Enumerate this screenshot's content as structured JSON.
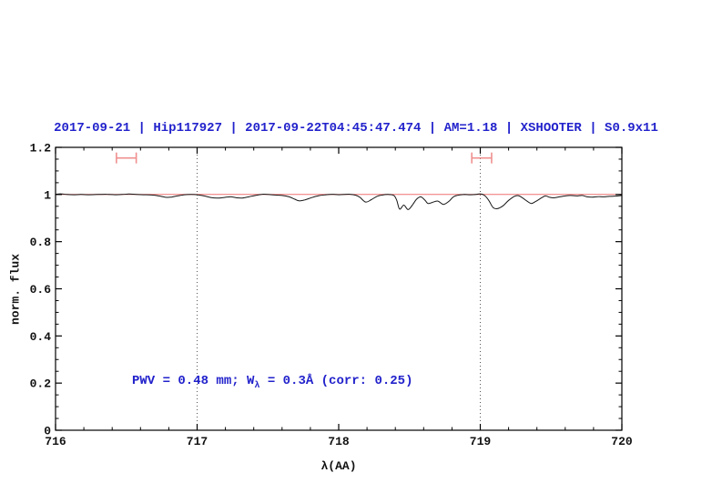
{
  "title": "2017-09-21 | Hip117927 | 2017-09-22T04:45:47.474 | AM=1.18 | XSHOOTER | S0.9x11",
  "annotation": {
    "prefix": "PWV = 0.48 mm; W",
    "sub": "λ",
    "suffix": " = 0.3Å (corr: 0.25)"
  },
  "colors": {
    "title_blue": "#2222cc",
    "spectrum_black": "#161616",
    "continuum_red": "#ee7070",
    "errorbar_salmon": "#f09090",
    "frame_black": "#000000",
    "vline_gray": "#555555"
  },
  "chart_data": {
    "type": "line",
    "title": "2017-09-21 | Hip117927 | 2017-09-22T04:45:47.474 | AM=1.18 | XSHOOTER | S0.9x11",
    "xlabel": "λ(AA)",
    "ylabel": "norm. flux",
    "xlim": [
      716,
      720
    ],
    "ylim": [
      0,
      1.2
    ],
    "grid": false,
    "legend": "none",
    "x_ticks": {
      "major": [
        716,
        717,
        718,
        719,
        720
      ],
      "labels": [
        "716",
        "717",
        "718",
        "719",
        "720"
      ],
      "minor_step": 0.2
    },
    "y_ticks": {
      "major": [
        0,
        0.2,
        0.4,
        0.6,
        0.8,
        1,
        1.2
      ],
      "labels": [
        "0",
        "0.2",
        "0.4",
        "0.6",
        "0.8",
        "1",
        "1.2"
      ],
      "minor_step": 0.05
    },
    "vlines": [
      717,
      719
    ],
    "annotations": [
      {
        "text": "PWV = 0.48 mm; W_λ = 0.3Å (corr: 0.25)",
        "x": 716.55,
        "y": 0.19
      }
    ],
    "error_bars": [
      {
        "x": 716.5,
        "xerr": 0.07,
        "y": 1.155
      },
      {
        "x": 719.01,
        "xerr": 0.07,
        "y": 1.155
      }
    ],
    "series": [
      {
        "name": "continuum-fit",
        "color": "#ee7070",
        "points": [
          [
            716,
            1.0
          ],
          [
            720,
            1.0
          ]
        ]
      },
      {
        "name": "observed-spectrum",
        "color": "#161616",
        "points": [
          [
            716.0,
            1.001
          ],
          [
            716.04,
            1.003
          ],
          [
            716.08,
            1.0
          ],
          [
            716.13,
            0.999
          ],
          [
            716.18,
            1.0
          ],
          [
            716.24,
            0.999
          ],
          [
            716.3,
            1.0
          ],
          [
            716.36,
            1.001
          ],
          [
            716.42,
            0.999
          ],
          [
            716.47,
            1.0
          ],
          [
            716.52,
            1.002
          ],
          [
            716.57,
            1.0
          ],
          [
            716.62,
            0.999
          ],
          [
            716.68,
            0.998
          ],
          [
            716.73,
            0.994
          ],
          [
            716.78,
            0.988
          ],
          [
            716.82,
            0.989
          ],
          [
            716.86,
            0.994
          ],
          [
            716.91,
            0.999
          ],
          [
            716.96,
            1.0
          ],
          [
            717.0,
            0.999
          ],
          [
            717.05,
            0.994
          ],
          [
            717.1,
            0.987
          ],
          [
            717.15,
            0.985
          ],
          [
            717.2,
            0.988
          ],
          [
            717.24,
            0.99
          ],
          [
            717.28,
            0.986
          ],
          [
            717.32,
            0.985
          ],
          [
            717.37,
            0.991
          ],
          [
            717.42,
            0.997
          ],
          [
            717.46,
            1.001
          ],
          [
            717.5,
            1.0
          ],
          [
            717.55,
            0.998
          ],
          [
            717.6,
            0.996
          ],
          [
            717.65,
            0.99
          ],
          [
            717.69,
            0.98
          ],
          [
            717.72,
            0.973
          ],
          [
            717.76,
            0.977
          ],
          [
            717.81,
            0.987
          ],
          [
            717.86,
            0.995
          ],
          [
            717.91,
            0.999
          ],
          [
            717.96,
            1.001
          ],
          [
            718.0,
            0.999
          ],
          [
            718.04,
            1.0
          ],
          [
            718.08,
            1.001
          ],
          [
            718.12,
            0.997
          ],
          [
            718.15,
            0.988
          ],
          [
            718.19,
            0.968
          ],
          [
            718.23,
            0.978
          ],
          [
            718.27,
            0.992
          ],
          [
            718.31,
            0.998
          ],
          [
            718.35,
            1.0
          ],
          [
            718.39,
            0.996
          ],
          [
            718.41,
            0.975
          ],
          [
            718.43,
            0.938
          ],
          [
            718.46,
            0.955
          ],
          [
            718.49,
            0.936
          ],
          [
            718.52,
            0.955
          ],
          [
            718.55,
            0.98
          ],
          [
            718.58,
            0.99
          ],
          [
            718.61,
            0.975
          ],
          [
            718.63,
            0.962
          ],
          [
            718.66,
            0.966
          ],
          [
            718.7,
            0.972
          ],
          [
            718.74,
            0.958
          ],
          [
            718.78,
            0.972
          ],
          [
            718.81,
            0.99
          ],
          [
            718.85,
            0.998
          ],
          [
            718.89,
            1.0
          ],
          [
            718.93,
            0.999
          ],
          [
            718.97,
            1.0
          ],
          [
            719.0,
            1.003
          ],
          [
            719.03,
            0.996
          ],
          [
            719.06,
            0.975
          ],
          [
            719.09,
            0.945
          ],
          [
            719.12,
            0.94
          ],
          [
            719.16,
            0.952
          ],
          [
            719.2,
            0.975
          ],
          [
            719.24,
            0.992
          ],
          [
            719.27,
            0.995
          ],
          [
            719.3,
            0.985
          ],
          [
            719.33,
            0.972
          ],
          [
            719.36,
            0.962
          ],
          [
            719.39,
            0.97
          ],
          [
            719.43,
            0.985
          ],
          [
            719.46,
            0.994
          ],
          [
            719.49,
            0.988
          ],
          [
            719.52,
            0.986
          ],
          [
            719.56,
            0.99
          ],
          [
            719.6,
            0.994
          ],
          [
            719.64,
            0.996
          ],
          [
            719.68,
            0.994
          ],
          [
            719.72,
            0.996
          ],
          [
            719.75,
            0.991
          ],
          [
            719.79,
            0.989
          ],
          [
            719.83,
            0.991
          ],
          [
            719.87,
            0.99
          ],
          [
            719.91,
            0.992
          ],
          [
            719.95,
            0.993
          ],
          [
            720.0,
            0.996
          ]
        ]
      }
    ]
  }
}
